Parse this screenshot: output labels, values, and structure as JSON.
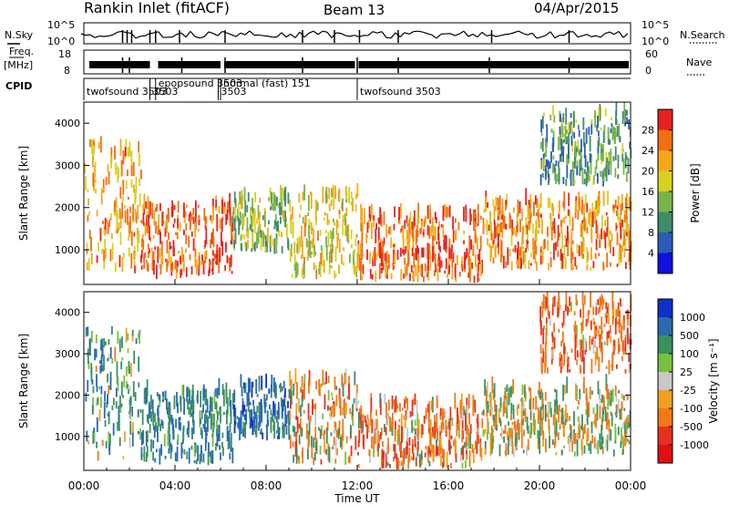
{
  "header": {
    "station": "Rankin Inlet (fitACF)",
    "beam": "Beam 13",
    "date": "04/Apr/2015"
  },
  "strip_labels": {
    "nsky": "N.Sky",
    "nsearch": "N.Search",
    "freq": "Freq.",
    "freq_unit": "[MHz]",
    "nave": "Nave",
    "cpid": "CPID"
  },
  "strip_ticks": {
    "noise_left": [
      "10^5",
      "10^0"
    ],
    "noise_right": [
      "10^5",
      "10^0"
    ],
    "freq_left": [
      "18",
      "8"
    ],
    "nave_right": [
      "60",
      "0"
    ]
  },
  "cpid_segments": [
    {
      "start_h": 0.0,
      "label": "twofsound 3503"
    },
    {
      "start_h": 2.9,
      "label": "3503"
    },
    {
      "start_h": 3.15,
      "label": "epopsound 3503"
    },
    {
      "start_h": 5.9,
      "label": "3503"
    },
    {
      "start_h": 6.0,
      "label": "normal (fast) 151"
    },
    {
      "start_h": 12.0,
      "label": "twofsound 3503"
    }
  ],
  "panel_power": {
    "ylabel": "Slant Range [km]",
    "yticks": [
      "1000",
      "2000",
      "3000",
      "4000"
    ],
    "colorbar_label": "Power [dB]",
    "colorbar_ticks": [
      "4",
      "8",
      "12",
      "16",
      "20",
      "24",
      "28"
    ],
    "colorbar_colors": [
      "#1010e0",
      "#2a5cb8",
      "#3f8c6a",
      "#78b548",
      "#d8d020",
      "#f5a818",
      "#f07010",
      "#e82020"
    ]
  },
  "panel_velocity": {
    "ylabel": "Slant Range [km]",
    "yticks": [
      "1000",
      "2000",
      "3000",
      "4000"
    ],
    "colorbar_label": "Velocity [m s⁻¹]",
    "colorbar_ticks": [
      "1000",
      "500",
      "100",
      "25",
      "-25",
      "-100",
      "-500",
      "-1000"
    ],
    "colorbar_colors": [
      "#1030c8",
      "#2a6ab0",
      "#3a9060",
      "#78c040",
      "#c8c8c8",
      "#f0a020",
      "#f07818",
      "#e83020",
      "#e01010"
    ]
  },
  "x_axis": {
    "label": "Time UT",
    "ticks": [
      "00:00",
      "04:00",
      "08:00",
      "12:00",
      "16:00",
      "20:00",
      "00:00"
    ]
  },
  "chart_data": {
    "type": "heatmap",
    "title": "Rankin Inlet (fitACF) Beam 13 04/Apr/2015",
    "xlabel": "Time UT",
    "ylabel": "Slant Range [km]",
    "xlim": [
      0,
      24
    ],
    "ylim": [
      180,
      4500
    ],
    "power_range_db": [
      0,
      30
    ],
    "velocity_range_ms": [
      -1000,
      1000
    ],
    "echo_regions": [
      {
        "t_start": 0.0,
        "t_end": 2.5,
        "r_min": 400,
        "r_max": 3500,
        "power_db": 22,
        "velocity": 300
      },
      {
        "t_start": 2.5,
        "t_end": 6.5,
        "r_min": 300,
        "r_max": 2000,
        "power_db": 27,
        "velocity": 500
      },
      {
        "t_start": 6.5,
        "t_end": 9.0,
        "r_min": 900,
        "r_max": 2200,
        "power_db": 14,
        "velocity": 700
      },
      {
        "t_start": 9.0,
        "t_end": 12.0,
        "r_min": 300,
        "r_max": 2300,
        "power_db": 18,
        "velocity": -150
      },
      {
        "t_start": 12.0,
        "t_end": 17.5,
        "r_min": 200,
        "r_max": 1800,
        "power_db": 26,
        "velocity": -300
      },
      {
        "t_start": 17.5,
        "t_end": 24.0,
        "r_min": 500,
        "r_max": 2100,
        "power_db": 24,
        "velocity": 0
      },
      {
        "t_start": 20.0,
        "t_end": 24.0,
        "r_min": 2500,
        "r_max": 4200,
        "power_db": 10,
        "velocity": -400
      }
    ]
  }
}
